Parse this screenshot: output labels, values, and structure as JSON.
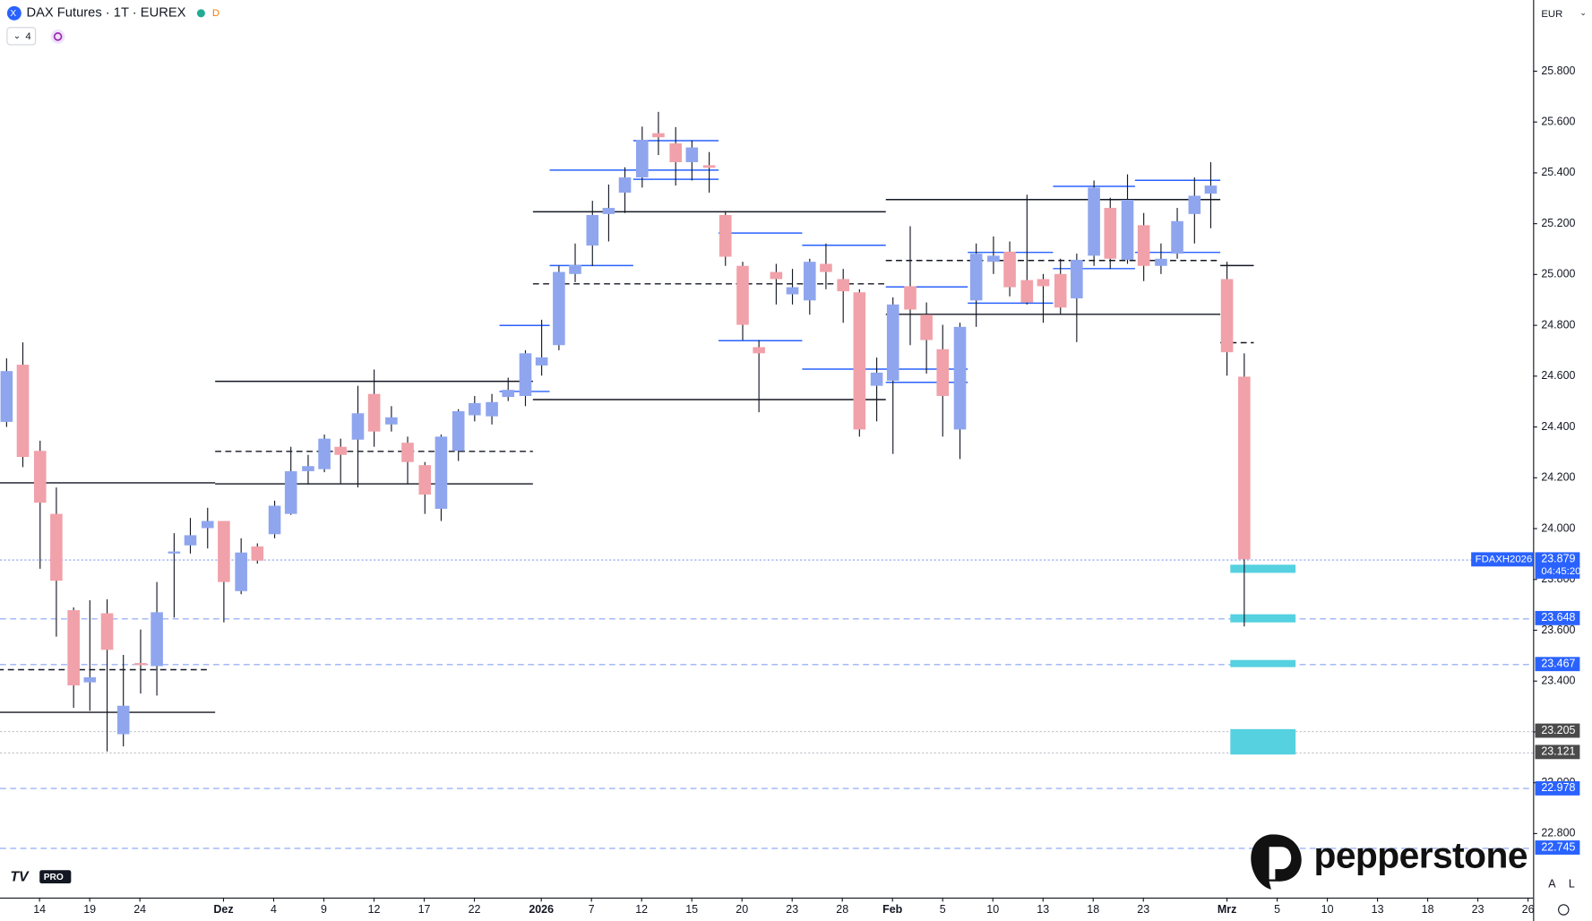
{
  "header": {
    "title": "DAX Futures · 1T · EUREX",
    "badge": "D",
    "indicators": "4",
    "currency": "EUR",
    "tv_badge": "PRO",
    "brand": "pepperstone",
    "scale_buttons": [
      "A",
      "L"
    ]
  },
  "chart_data": {
    "type": "candlestick",
    "categories": [
      null,
      null,
      "14",
      null,
      null,
      "19",
      null,
      null,
      "24",
      null,
      null,
      null,
      null,
      "Dez",
      null,
      null,
      "4",
      null,
      null,
      "9",
      null,
      null,
      "12",
      null,
      null,
      "17",
      null,
      null,
      "22",
      null,
      null,
      null,
      "2026",
      null,
      null,
      "7",
      null,
      null,
      "12",
      null,
      null,
      "15",
      null,
      null,
      "20",
      null,
      null,
      "23",
      null,
      null,
      "28",
      null,
      null,
      "Feb",
      null,
      null,
      "5",
      null,
      null,
      "10",
      null,
      null,
      "13",
      null,
      null,
      "18",
      null,
      null,
      "23",
      null,
      null,
      null,
      null,
      "Mrz",
      null,
      null,
      "5",
      null,
      null,
      "10",
      null,
      null,
      "13",
      null,
      null,
      "18",
      null,
      null,
      "23",
      null,
      null,
      "26"
    ],
    "emphasized": [
      13,
      32,
      53,
      73
    ],
    "open": [
      24420,
      24645,
      24306,
      24058,
      23679,
      23395,
      23667,
      23191,
      23471,
      23459,
      23902,
      23934,
      24002,
      24030,
      23754,
      23930,
      23978,
      24058,
      24226,
      24234,
      24322,
      24350,
      24530,
      24410,
      24338,
      24250,
      24078,
      24306,
      24446,
      24442,
      24518,
      24522,
      24642,
      24722,
      25002,
      25114,
      25238,
      25322,
      25382,
      25556,
      25516,
      25442,
      25430,
      25234,
      25034,
      24714,
      25010,
      24922,
      24898,
      25042,
      24982,
      24930,
      24562,
      24582,
      24954,
      24842,
      24706,
      24390,
      24898,
      25050,
      25090,
      24978,
      24982,
      25002,
      24906,
      25074,
      25262,
      25058,
      25194,
      25034,
      25082,
      25238,
      25318,
      24982,
      24598,
      null,
      null,
      null,
      null,
      null,
      null,
      null,
      null,
      null,
      null,
      null,
      null,
      null,
      null,
      null,
      null,
      null
    ],
    "high": [
      24670,
      24733,
      24346,
      24162,
      23690,
      23718,
      23722,
      23503,
      23603,
      23790,
      23982,
      24042,
      24082,
      24030,
      23962,
      23942,
      24110,
      24322,
      24290,
      24370,
      24354,
      24562,
      24626,
      24482,
      24362,
      24262,
      24370,
      24470,
      24522,
      24530,
      24594,
      24702,
      24822,
      25034,
      25122,
      25290,
      25354,
      25422,
      25582,
      25640,
      25580,
      25528,
      25482,
      25250,
      25050,
      24742,
      25042,
      25022,
      25062,
      25122,
      25022,
      24942,
      24673,
      24910,
      25190,
      24890,
      24802,
      24810,
      25122,
      25150,
      25130,
      25314,
      25002,
      25062,
      25082,
      25370,
      25302,
      25394,
      25242,
      25122,
      25262,
      25382,
      25442,
      25050,
      24690,
      null,
      null,
      null,
      null,
      null,
      null,
      null,
      null,
      null,
      null,
      null,
      null,
      null,
      null,
      null,
      null,
      null
    ],
    "low": [
      24400,
      24242,
      23842,
      23575,
      23295,
      23283,
      23123,
      23143,
      23351,
      23343,
      23650,
      23902,
      23922,
      23631,
      23742,
      23862,
      23962,
      24054,
      24174,
      24222,
      24178,
      24162,
      24322,
      24382,
      24178,
      24058,
      24030,
      24266,
      24422,
      24410,
      24502,
      24482,
      24602,
      24702,
      24970,
      25034,
      25130,
      25242,
      25342,
      25470,
      25350,
      25370,
      25322,
      25034,
      24742,
      24458,
      24882,
      24882,
      24842,
      24942,
      24810,
      24362,
      24422,
      24294,
      24722,
      24610,
      24362,
      24274,
      24794,
      25002,
      24914,
      24882,
      24810,
      24842,
      24734,
      25034,
      25022,
      25042,
      24974,
      25002,
      25062,
      25122,
      25182,
      24602,
      23615,
      null,
      null,
      null,
      null,
      null,
      null,
      null,
      null,
      null,
      null,
      null,
      null,
      null,
      null,
      null,
      null,
      null
    ],
    "close": [
      24620,
      24282,
      24102,
      23795,
      23383,
      23415,
      23523,
      23303,
      23463,
      23671,
      23910,
      23974,
      24030,
      23790,
      23906,
      23874,
      24090,
      24226,
      24246,
      24354,
      24290,
      24454,
      24382,
      24438,
      24262,
      24134,
      24362,
      24462,
      24494,
      24498,
      24546,
      24690,
      24674,
      25010,
      25038,
      25234,
      25262,
      25382,
      25530,
      25540,
      25442,
      25500,
      25420,
      25070,
      24802,
      24690,
      24982,
      24950,
      25050,
      25010,
      24934,
      24390,
      24614,
      24882,
      24862,
      24742,
      24522,
      24794,
      25082,
      25074,
      24950,
      24890,
      24954,
      24870,
      25058,
      25342,
      25062,
      25294,
      25034,
      25062,
      25210,
      25310,
      25350,
      24694,
      23879,
      null,
      null,
      null,
      null,
      null,
      null,
      null,
      null,
      null,
      null,
      null,
      null,
      null,
      null,
      null,
      null,
      null
    ],
    "up_color": "#8fa6ee",
    "down_color": "#f1a1a9",
    "wick_color": "#131722",
    "ylim": [
      22548,
      26080
    ],
    "yticks": [
      {
        "value": 22800,
        "label": "22.800"
      },
      {
        "value": 23000,
        "label": "23.000"
      },
      {
        "value": 23200,
        "label": "23.200"
      },
      {
        "value": 23400,
        "label": "23.400"
      },
      {
        "value": 23600,
        "label": "23.600"
      },
      {
        "value": 23800,
        "label": "23.800"
      },
      {
        "value": 24000,
        "label": "24.000"
      },
      {
        "value": 24200,
        "label": "24.200"
      },
      {
        "value": 24400,
        "label": "24.400"
      },
      {
        "value": 24600,
        "label": "24.600"
      },
      {
        "value": 24800,
        "label": "24.800"
      },
      {
        "value": 25000,
        "label": "25.000"
      },
      {
        "value": 25200,
        "label": "25.200"
      },
      {
        "value": 25400,
        "label": "25.400"
      },
      {
        "value": 25600,
        "label": "25.600"
      },
      {
        "value": 25800,
        "label": "25.800"
      }
    ],
    "grid": false,
    "levels": [
      {
        "value": 24182,
        "from": -0.5,
        "to": 12.5,
        "style": "solid",
        "color": "#131722"
      },
      {
        "value": 23279,
        "from": -0.5,
        "to": 12.5,
        "style": "solid",
        "color": "#131722"
      },
      {
        "value": 23447,
        "from": -0.5,
        "to": 12,
        "style": "dashed",
        "color": "#131722"
      },
      {
        "value": 24582,
        "from": 12.5,
        "to": 31.5,
        "style": "solid",
        "color": "#131722"
      },
      {
        "value": 24178,
        "from": 12.5,
        "to": 31.5,
        "style": "solid",
        "color": "#131722"
      },
      {
        "value": 24306,
        "from": 12.5,
        "to": 31.5,
        "style": "dashed",
        "color": "#131722"
      },
      {
        "value": 24510,
        "from": 31.5,
        "to": 52.6,
        "style": "solid",
        "color": "#131722"
      },
      {
        "value": 25249,
        "from": 31.5,
        "to": 52.6,
        "style": "solid",
        "color": "#131722"
      },
      {
        "value": 24965,
        "from": 31.5,
        "to": 52.6,
        "style": "dashed",
        "color": "#131722"
      },
      {
        "value": 25297,
        "from": 52.6,
        "to": 72.6,
        "style": "solid",
        "color": "#131722"
      },
      {
        "value": 24845,
        "from": 52.6,
        "to": 72.6,
        "style": "solid",
        "color": "#131722"
      },
      {
        "value": 25057,
        "from": 52.6,
        "to": 72.6,
        "style": "dashed",
        "color": "#131722"
      },
      {
        "value": 25037,
        "from": 72.6,
        "to": 74.6,
        "style": "solid",
        "color": "#131722"
      },
      {
        "value": 24733,
        "from": 72.6,
        "to": 74.6,
        "style": "dashed",
        "color": "#131722"
      },
      {
        "value": 24801,
        "from": 29.5,
        "to": 32.5,
        "style": "solid",
        "color": "#2962ff"
      },
      {
        "value": 24542,
        "from": 29.5,
        "to": 32.5,
        "style": "solid",
        "color": "#2962ff"
      },
      {
        "value": 25412,
        "from": 32.5,
        "to": 42.6,
        "style": "solid",
        "color": "#2962ff"
      },
      {
        "value": 25037,
        "from": 32.5,
        "to": 37.5,
        "style": "solid",
        "color": "#2962ff"
      },
      {
        "value": 25528,
        "from": 37.5,
        "to": 42.6,
        "style": "solid",
        "color": "#2962ff"
      },
      {
        "value": 25377,
        "from": 37.5,
        "to": 42.6,
        "style": "solid",
        "color": "#2962ff"
      },
      {
        "value": 25165,
        "from": 42.6,
        "to": 47.6,
        "style": "solid",
        "color": "#2962ff"
      },
      {
        "value": 24741,
        "from": 42.6,
        "to": 47.6,
        "style": "solid",
        "color": "#2962ff"
      },
      {
        "value": 25117,
        "from": 47.6,
        "to": 52.6,
        "style": "solid",
        "color": "#2962ff"
      },
      {
        "value": 24629,
        "from": 47.6,
        "to": 57.5,
        "style": "solid",
        "color": "#2962ff"
      },
      {
        "value": 24578,
        "from": 52.6,
        "to": 57.5,
        "style": "solid",
        "color": "#2962ff"
      },
      {
        "value": 24953,
        "from": 52.6,
        "to": 57.5,
        "style": "solid",
        "color": "#2962ff"
      },
      {
        "value": 25089,
        "from": 57.5,
        "to": 62.6,
        "style": "solid",
        "color": "#2962ff"
      },
      {
        "value": 24889,
        "from": 57.5,
        "to": 62.6,
        "style": "solid",
        "color": "#2962ff"
      },
      {
        "value": 25349,
        "from": 62.6,
        "to": 67.5,
        "style": "solid",
        "color": "#2962ff"
      },
      {
        "value": 25025,
        "from": 62.6,
        "to": 67.5,
        "style": "solid",
        "color": "#2962ff"
      },
      {
        "value": 25373,
        "from": 67.5,
        "to": 72.6,
        "style": "solid",
        "color": "#2962ff"
      },
      {
        "value": 25089,
        "from": 67.5,
        "to": 72.6,
        "style": "solid",
        "color": "#2962ff"
      }
    ],
    "zones": [
      {
        "high": 23858,
        "low": 23826,
        "from": 73.2,
        "to": 77.1
      },
      {
        "high": 23663,
        "low": 23631,
        "from": 73.2,
        "to": 77.1
      },
      {
        "high": 23483,
        "low": 23455,
        "from": 73.2,
        "to": 77.1
      },
      {
        "high": 23211,
        "low": 23111,
        "from": 73.2,
        "to": 77.1
      }
    ],
    "zone_color": "#55d1e0",
    "price_labels": [
      {
        "value": 23879,
        "label": "23.879",
        "name": "FDAXH2026",
        "countdown": "04:45:20",
        "color": "#2962ff",
        "style": "dotted"
      },
      {
        "value": 23648,
        "label": "23.648",
        "color": "#2962ff",
        "style": "dashed"
      },
      {
        "value": 23467,
        "label": "23.467",
        "color": "#2962ff",
        "style": "dashed"
      },
      {
        "value": 23205,
        "label": "23.205",
        "color": "#4a4a4a",
        "style": "dotted"
      },
      {
        "value": 23121,
        "label": "23.121",
        "color": "#4a4a4a",
        "style": "dotted"
      },
      {
        "value": 22978,
        "label": "22.978",
        "color": "#2962ff",
        "style": "dashed"
      },
      {
        "value": 22745,
        "label": "22.745",
        "color": "#2962ff",
        "style": "dashed"
      }
    ]
  }
}
